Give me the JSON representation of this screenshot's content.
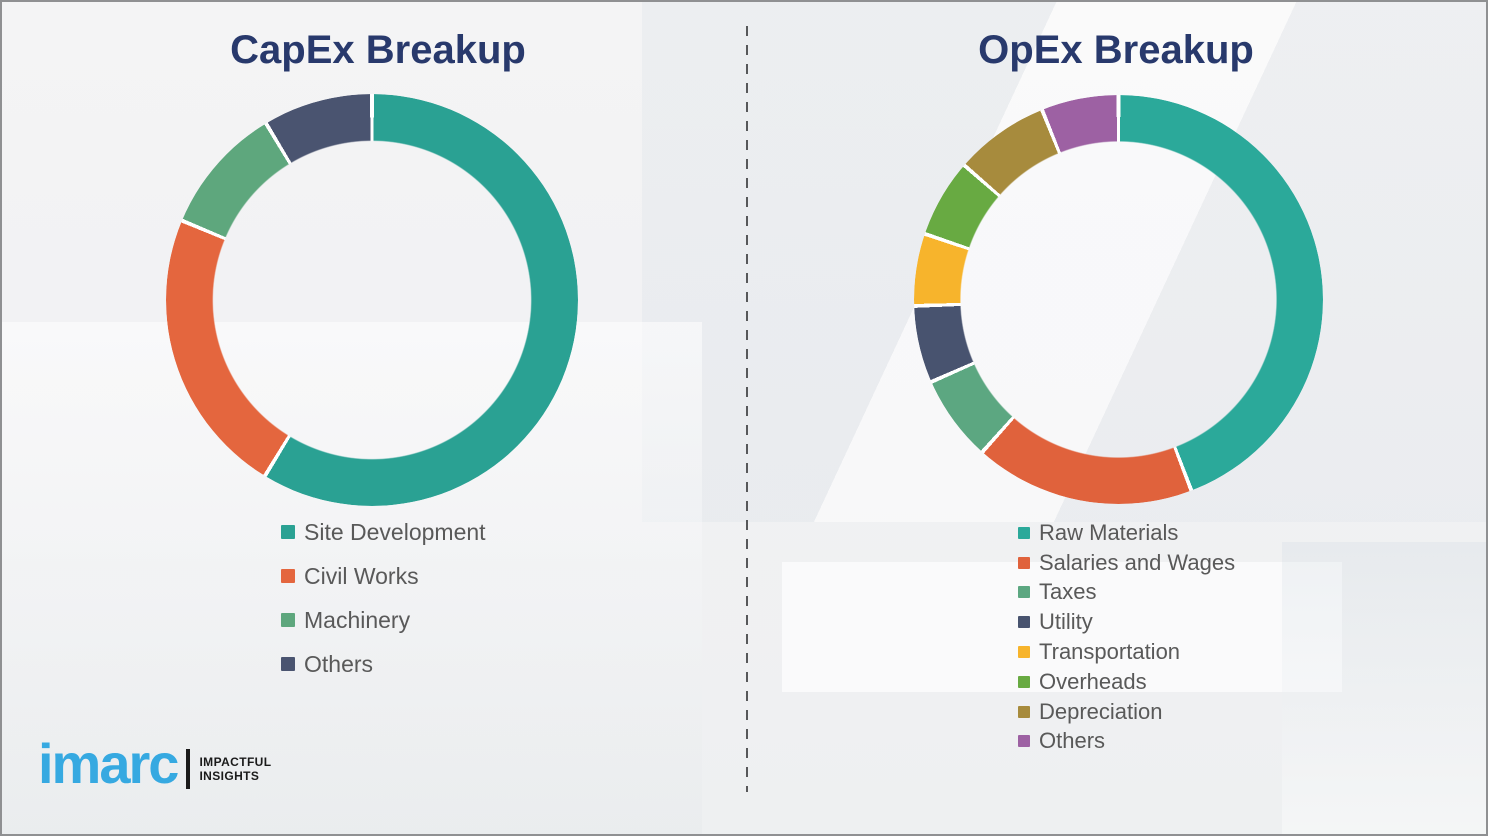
{
  "chart_data": [
    {
      "type": "pie",
      "subtype": "donut",
      "title": "CapEx Breakup",
      "labels": [
        "Site Development",
        "Civil Works",
        "Machinery",
        "Others"
      ],
      "values": [
        58.7,
        22.6,
        10.1,
        8.6
      ],
      "colors": [
        "#2AA193",
        "#E4663E",
        "#5EA77D",
        "#4A5470"
      ],
      "start_angle_deg": 0,
      "direction": "clockwise",
      "hole_ratio": 0.78,
      "segment_gap_color": "#FFFFFF",
      "legend_position": "below-left",
      "data_labels_shown": false
    },
    {
      "type": "pie",
      "subtype": "donut",
      "title": "OpEx Breakup",
      "labels": [
        "Raw Materials",
        "Salaries and Wages",
        "Taxes",
        "Utility",
        "Transportation",
        "Overheads",
        "Depreciation",
        "Others"
      ],
      "values": [
        44.2,
        17.4,
        6.8,
        6.1,
        5.7,
        6.2,
        7.5,
        6.1
      ],
      "colors": [
        "#2BA99A",
        "#E0623C",
        "#5CA781",
        "#48536F",
        "#F7B42C",
        "#68AA42",
        "#A78B3D",
        "#9D61A3"
      ],
      "start_angle_deg": 0,
      "direction": "clockwise",
      "hole_ratio": 0.78,
      "segment_gap_color": "#FFFFFF",
      "legend_position": "below-left",
      "data_labels_shown": false
    }
  ],
  "logo": {
    "brand": "imarc",
    "tagline_line1": "IMPACTFUL",
    "tagline_line2": "INSIGHTS"
  },
  "theme": {
    "title_color": "#28396C",
    "legend_text_color": "#595959",
    "brand_blue": "#36A9E1"
  }
}
